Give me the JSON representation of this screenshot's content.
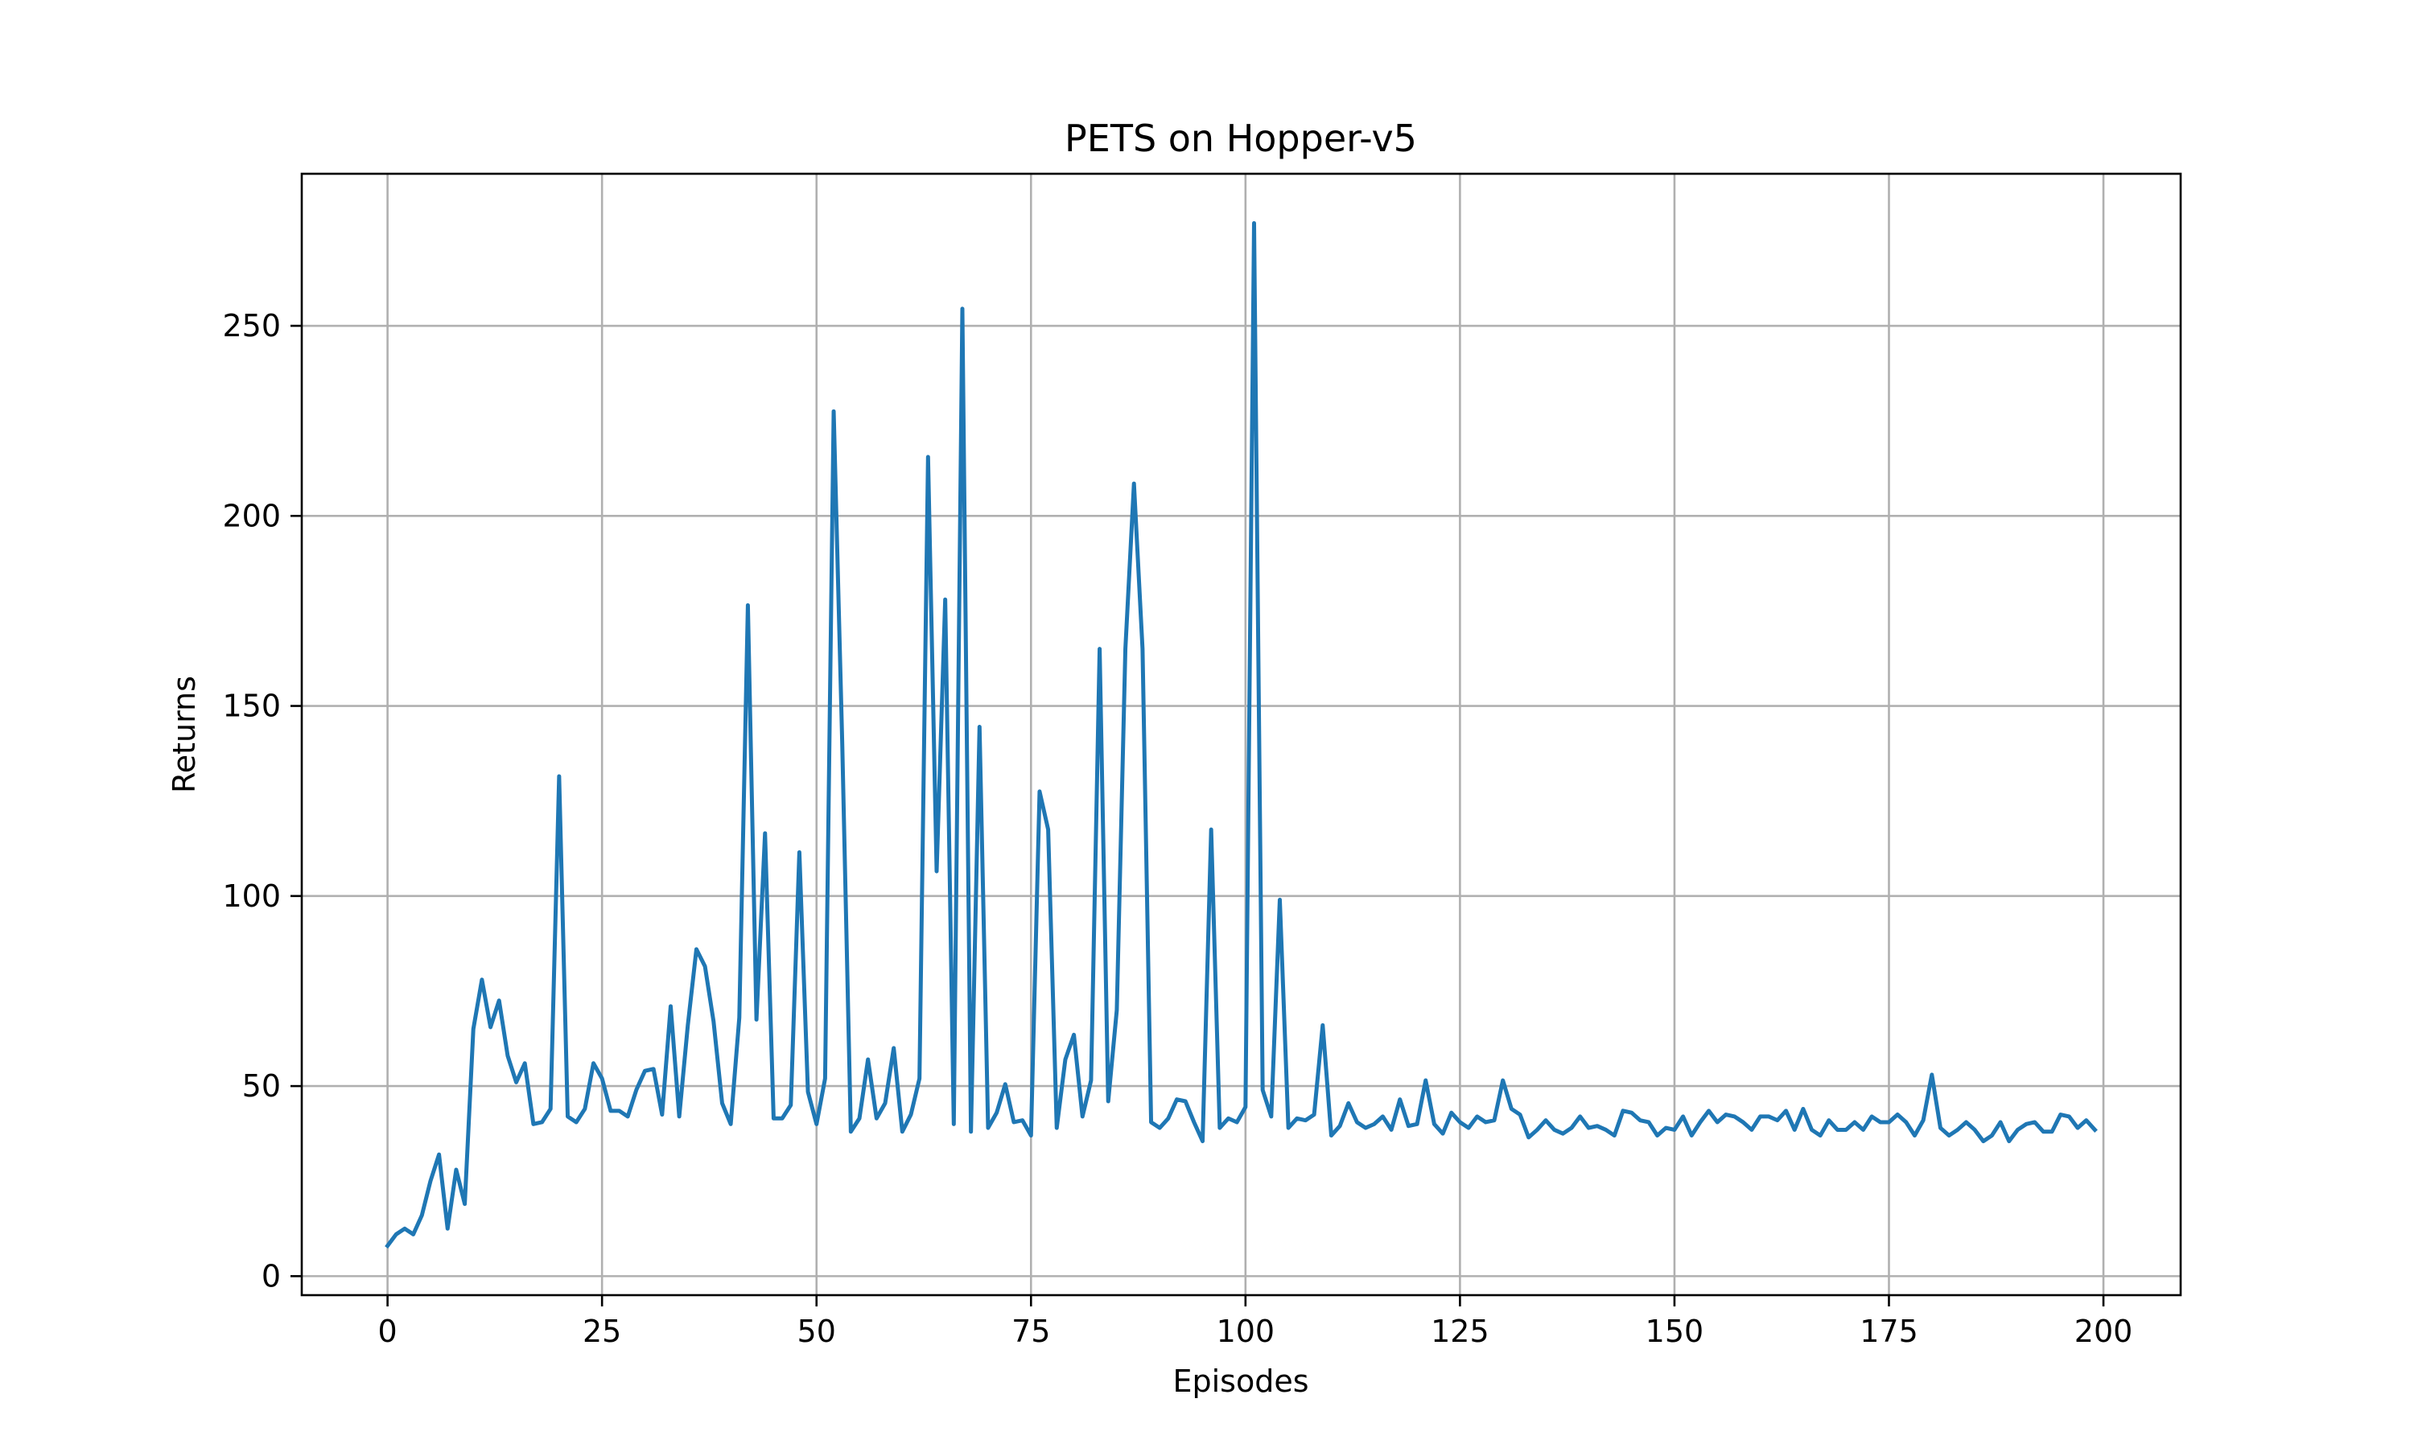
{
  "chart_data": {
    "type": "line",
    "title": "PETS on Hopper-v5",
    "xlabel": "Episodes",
    "ylabel": "Returns",
    "xlim": [
      -10,
      209
    ],
    "ylim": [
      -5,
      290
    ],
    "grid": true,
    "color": "#1f77b4",
    "x_ticks": [
      0,
      25,
      50,
      75,
      100,
      125,
      150,
      175,
      200
    ],
    "y_ticks": [
      0,
      50,
      100,
      150,
      200,
      250
    ],
    "series": [
      {
        "values": [
          8,
          11,
          12.5,
          11,
          16,
          25,
          32,
          12.5,
          28,
          19,
          65,
          78,
          65.5,
          72.5,
          58,
          51,
          56,
          40,
          40.5,
          44,
          131.5,
          42,
          40.5,
          44,
          56,
          52,
          43.5,
          43.5,
          42,
          49,
          54,
          54.5,
          42.5,
          71,
          42,
          66,
          86,
          81.5,
          67,
          45.5,
          40,
          68,
          176.5,
          67.5,
          116.5,
          41.5,
          41.5,
          45,
          111.5,
          48.5,
          40,
          52,
          227.5,
          140,
          38,
          41.5,
          57,
          41.5,
          45.5,
          60,
          38,
          42.5,
          52,
          215.5,
          106.5,
          178,
          40,
          254.5,
          38,
          144.5,
          39,
          43,
          50.5,
          40.5,
          41,
          37,
          127.5,
          117.5,
          39,
          57,
          63.5,
          42,
          51.5,
          165,
          46,
          70,
          165,
          208.5,
          165,
          40.5,
          39,
          41.5,
          46.5,
          46,
          40.5,
          35.5,
          117.5,
          39,
          41.5,
          40.5,
          44.5,
          277,
          49,
          42,
          99,
          39,
          41.5,
          41,
          42.5,
          66,
          37,
          39.5,
          45.5,
          40.5,
          39,
          40,
          42,
          38.5,
          46.5,
          39.5,
          40,
          51.5,
          40,
          37.5,
          43,
          40.5,
          39,
          42,
          40.5,
          41,
          51.5,
          44,
          42.5,
          36.5,
          38.5,
          41,
          38.5,
          37.5,
          39,
          42,
          39,
          39.5,
          38.5,
          37,
          43.5,
          43,
          41,
          40.5,
          37,
          39,
          38.5,
          42,
          37,
          40.5,
          43.5,
          40.5,
          42.5,
          42,
          40.5,
          38.5,
          42,
          42,
          41,
          43.5,
          38.5,
          44,
          38.5,
          37,
          41,
          38.5,
          38.5,
          40.5,
          38.5,
          42,
          40.5,
          40.5,
          42.5,
          40.5,
          37,
          41,
          53,
          39,
          37,
          38.5,
          40.5,
          38.5,
          35.5,
          37,
          40.5,
          35.5,
          38.5,
          40,
          40.5,
          38,
          38,
          42.5,
          42,
          39,
          41,
          38.5
        ]
      }
    ]
  }
}
